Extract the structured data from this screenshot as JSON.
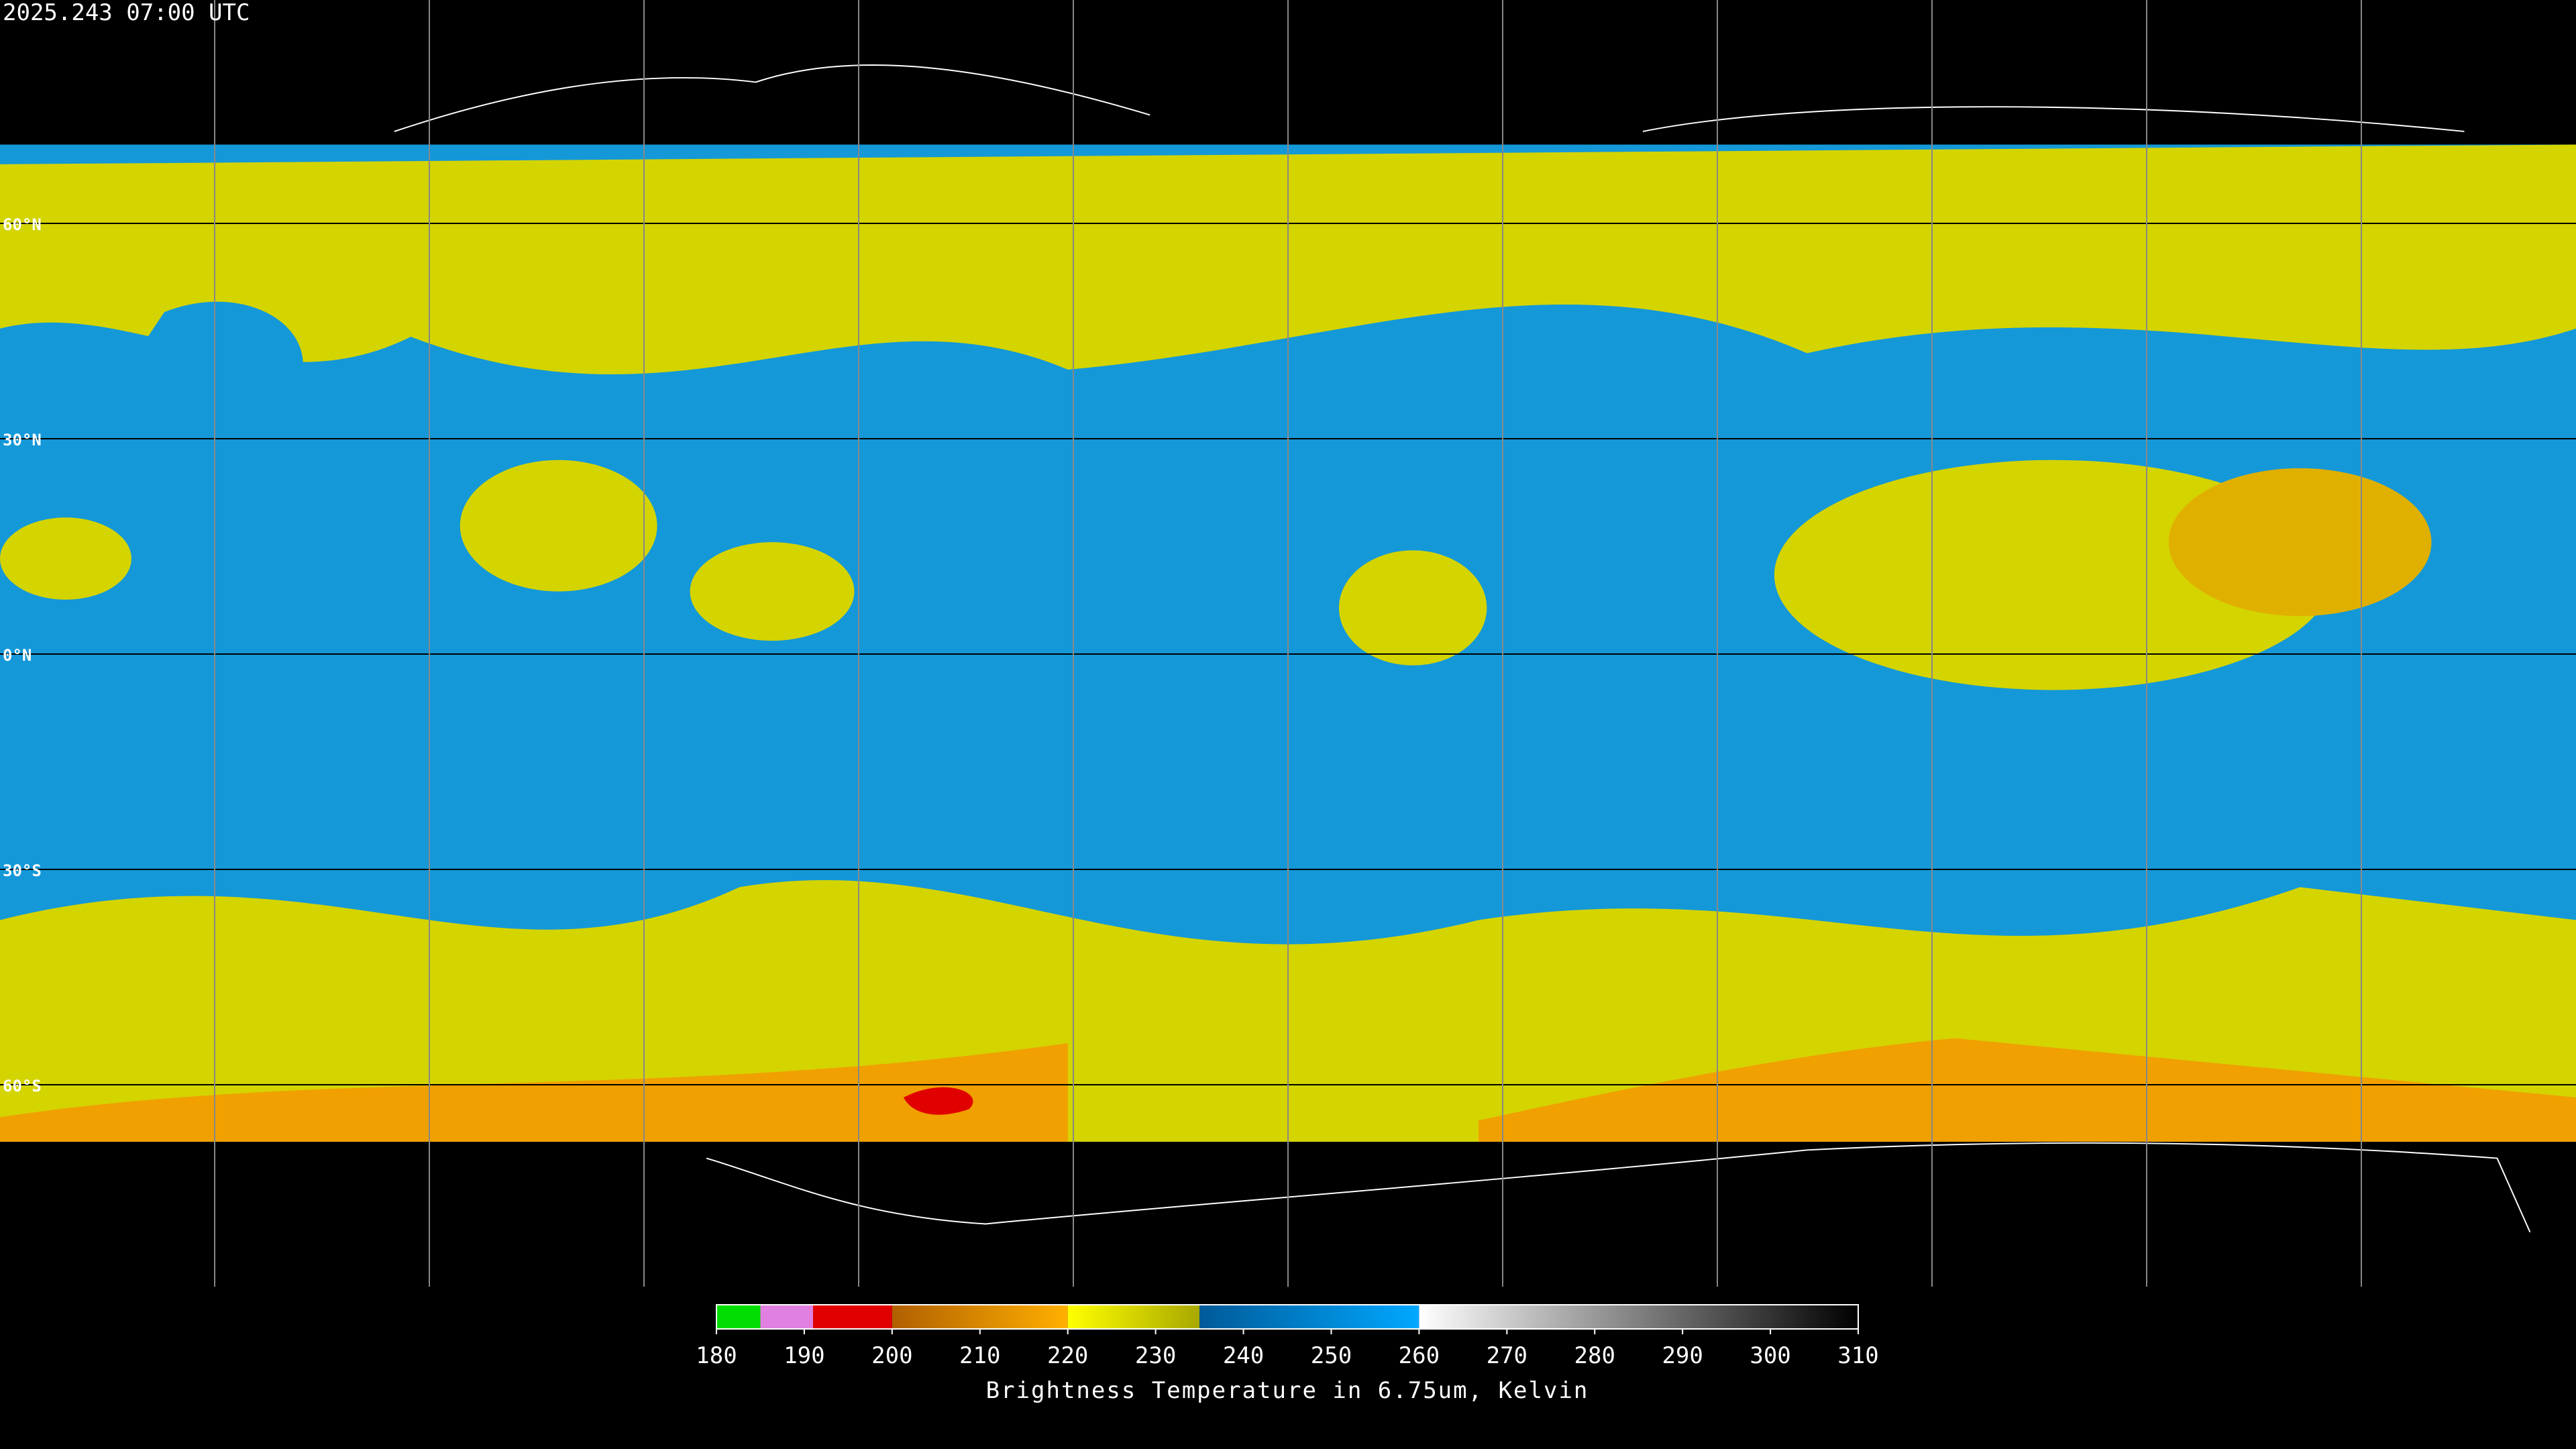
{
  "header": {
    "timestamp": "2025.243 07:00 UTC"
  },
  "map": {
    "lat_lines": [
      {
        "value": 60,
        "label": "60°N"
      },
      {
        "value": 30,
        "label": "30°N"
      },
      {
        "value": 0,
        "label": "0°N"
      },
      {
        "value": -30,
        "label": "30°S"
      },
      {
        "value": -60,
        "label": "60°S"
      }
    ],
    "lon_lines": [
      -150,
      -120,
      -90,
      -60,
      -30,
      0,
      30,
      60,
      90,
      120,
      150
    ]
  },
  "colorbar": {
    "range": [
      180,
      310
    ],
    "ticks": [
      180,
      190,
      200,
      210,
      220,
      230,
      240,
      250,
      260,
      270,
      280,
      290,
      300,
      310
    ],
    "segments": [
      {
        "from": 180,
        "to": 185,
        "colors": [
          "#00dd00",
          "#00dd00"
        ]
      },
      {
        "from": 185,
        "to": 191,
        "colors": [
          "#e080e0",
          "#e080e0"
        ]
      },
      {
        "from": 191,
        "to": 200,
        "colors": [
          "#e00000",
          "#e00000"
        ]
      },
      {
        "from": 200,
        "to": 220,
        "colors": [
          "#b06000",
          "#ffb000"
        ]
      },
      {
        "from": 220,
        "to": 235,
        "colors": [
          "#ffff00",
          "#a8a800"
        ]
      },
      {
        "from": 235,
        "to": 260,
        "colors": [
          "#005a98",
          "#00a8ff"
        ]
      },
      {
        "from": 260,
        "to": 310,
        "colors": [
          "#ffffff",
          "#000000"
        ]
      }
    ],
    "label": "Brightness Temperature in 6.75um, Kelvin"
  }
}
